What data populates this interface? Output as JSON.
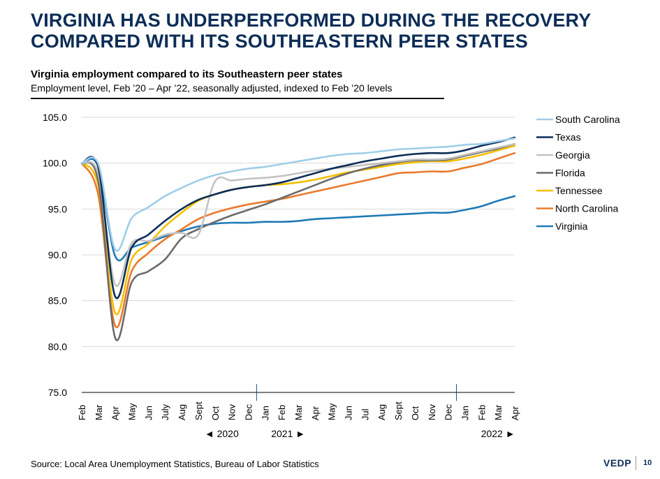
{
  "page": {
    "headline": "VIRGINIA HAS UNDERPERFORMED DURING THE RECOVERY COMPARED WITH ITS SOUTHEASTERN PEER STATES",
    "source": "Source: Local Area Unemployment Statistics, Bureau of Labor Statistics",
    "brand": "VEDP",
    "page_number": "10"
  },
  "chart_data": {
    "type": "line",
    "title": "Virginia employment compared to its Southeastern peer states",
    "subtitle": "Employment level, Feb ’20 – Apr ’22, seasonally adjusted, indexed to Feb ’20 levels",
    "ylim": [
      75,
      105
    ],
    "yticks": [
      "105.0",
      "100.0",
      "95.0",
      "90.0",
      "85.0",
      "80.0",
      "75.0"
    ],
    "categories": [
      "Feb",
      "Mar",
      "Apr",
      "May",
      "Jun",
      "July",
      "Aug",
      "Sept",
      "Oct",
      "Nov",
      "Dec",
      "Jan",
      "Feb",
      "Mar",
      "Apr",
      "May",
      "Jun",
      "Jul",
      "Aug",
      "Sept",
      "Oct",
      "Nov",
      "Dec",
      "Jan",
      "Feb",
      "Mar",
      "Apr"
    ],
    "year_labels": [
      {
        "text": "◄ 2020",
        "at_index": 8.4
      },
      {
        "text": "2021 ►",
        "at_index": 12.4
      },
      {
        "text": "2022 ►",
        "at_index": 25.0
      }
    ],
    "year_dividers": [
      10.5,
      22.5
    ],
    "grid": true,
    "legend_position": "top-right",
    "series": [
      {
        "name": "South Carolina",
        "color": "#9fcde8",
        "values": [
          100.0,
          99.9,
          90.6,
          94.0,
          95.2,
          96.4,
          97.3,
          98.1,
          98.7,
          99.1,
          99.4,
          99.6,
          99.9,
          100.2,
          100.5,
          100.8,
          101.0,
          101.1,
          101.3,
          101.5,
          101.6,
          101.7,
          101.8,
          102.0,
          102.1,
          102.4,
          102.7
        ]
      },
      {
        "name": "Texas",
        "color": "#0c2d57",
        "values": [
          100.0,
          99.5,
          85.5,
          90.8,
          92.2,
          93.7,
          95.0,
          96.0,
          96.6,
          97.1,
          97.4,
          97.6,
          97.9,
          98.4,
          98.9,
          99.4,
          99.8,
          100.2,
          100.5,
          100.8,
          101.0,
          101.1,
          101.1,
          101.4,
          101.9,
          102.3,
          102.8
        ]
      },
      {
        "name": "Georgia",
        "color": "#c3c3c3",
        "values": [
          100.0,
          98.8,
          86.8,
          91.3,
          91.5,
          92.2,
          92.4,
          92.2,
          98.0,
          98.1,
          98.3,
          98.4,
          98.6,
          98.9,
          99.2,
          99.4,
          99.6,
          99.8,
          100.0,
          100.2,
          100.4,
          100.4,
          100.5,
          100.9,
          101.3,
          101.7,
          102.1
        ]
      },
      {
        "name": "Florida",
        "color": "#6b6b6b",
        "values": [
          100.0,
          98.0,
          81.0,
          87.0,
          88.2,
          89.5,
          91.8,
          92.8,
          93.6,
          94.3,
          94.9,
          95.5,
          96.2,
          96.9,
          97.6,
          98.3,
          98.9,
          99.4,
          99.8,
          100.1,
          100.3,
          100.3,
          100.4,
          100.8,
          101.2,
          101.6,
          102.1
        ]
      },
      {
        "name": "Tennessee",
        "color": "#f5be00",
        "values": [
          100.0,
          97.5,
          83.7,
          89.5,
          91.2,
          93.1,
          94.6,
          95.9,
          96.6,
          97.1,
          97.4,
          97.6,
          97.7,
          97.9,
          98.2,
          98.6,
          99.0,
          99.3,
          99.6,
          99.9,
          100.1,
          100.2,
          100.2,
          100.5,
          100.9,
          101.4,
          101.9
        ]
      },
      {
        "name": "North Carolina",
        "color": "#ea7a2b",
        "values": [
          100.0,
          96.5,
          82.3,
          88.2,
          90.2,
          91.7,
          92.8,
          93.9,
          94.6,
          95.1,
          95.5,
          95.8,
          96.1,
          96.5,
          96.9,
          97.3,
          97.7,
          98.1,
          98.5,
          98.9,
          99.0,
          99.1,
          99.1,
          99.5,
          99.9,
          100.5,
          101.1
        ]
      },
      {
        "name": "Virginia",
        "color": "#1f7ab8",
        "values": [
          100.0,
          99.6,
          89.9,
          90.8,
          91.4,
          92.0,
          92.6,
          93.1,
          93.4,
          93.5,
          93.5,
          93.6,
          93.6,
          93.7,
          93.9,
          94.0,
          94.1,
          94.2,
          94.3,
          94.4,
          94.5,
          94.6,
          94.6,
          94.9,
          95.3,
          95.9,
          96.4
        ]
      }
    ]
  }
}
